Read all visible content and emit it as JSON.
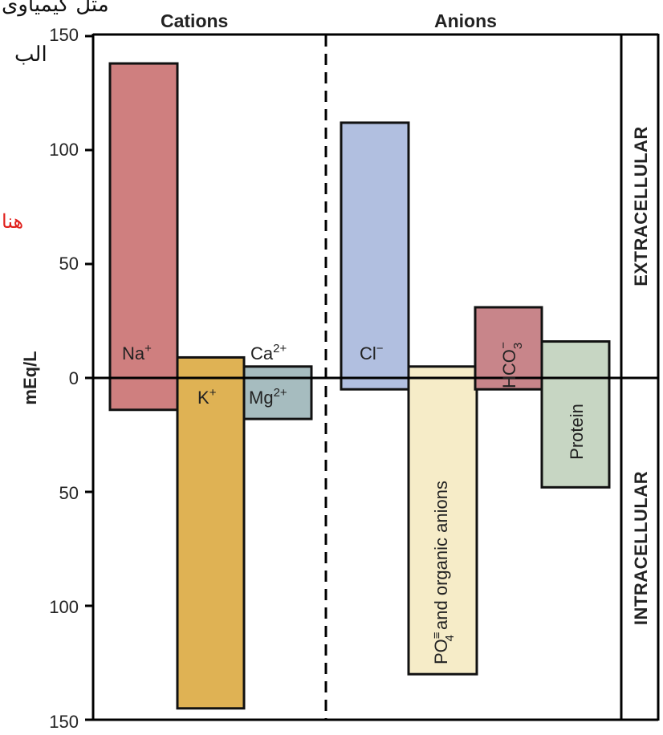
{
  "chart_data": {
    "type": "bar",
    "ylabel": "mEq/L",
    "ylim_extracellular": [
      0,
      150
    ],
    "ylim_intracellular": [
      0,
      150
    ],
    "y_ticks_top": [
      "150",
      "100",
      "50",
      "0"
    ],
    "y_ticks_bottom": [
      "50",
      "100",
      "150"
    ],
    "group_headers": {
      "cations": "Cations",
      "anions": "Anions"
    },
    "side_labels": {
      "top": "EXTRACELLULAR",
      "bottom": "INTRACELLULAR"
    },
    "bars": [
      {
        "label": "Na+",
        "extracellular": 138,
        "intracellular": 14,
        "color": "#cf7f7f"
      },
      {
        "label": "K+",
        "extracellular": 9,
        "intracellular": 145,
        "color": "#dfb254"
      },
      {
        "label": "Ca2+ / Mg2+",
        "extracellular": 5,
        "intracellular": 18,
        "color": "#a6bcbf"
      },
      {
        "label": "Cl-",
        "extracellular": 112,
        "intracellular": 5,
        "color": "#b1bfe0"
      },
      {
        "label": "PO4 and organic anions",
        "extracellular": 5,
        "intracellular": 130,
        "color": "#f6ecc8"
      },
      {
        "label": "HCO3-",
        "extracellular": 31,
        "intracellular": 5,
        "color": "#c8858a"
      },
      {
        "label": "Protein",
        "extracellular": 16,
        "intracellular": 48,
        "color": "#c7d6c3"
      }
    ],
    "bar_labels": {
      "na": "Na",
      "na_sup": "+",
      "k": "K",
      "k_sup": "+",
      "ca": "Ca",
      "ca_sup": "2+",
      "mg": "Mg",
      "mg_sup": "2+",
      "cl": "Cl",
      "cl_sup": "−",
      "po4_main": "PO",
      "po4_sup": "≡",
      "po4_sub": "4",
      "po4_rest": " and organic anions",
      "hco3_main": "HCO",
      "hco3_sub": "3",
      "hco3_sup": "−",
      "protein": "Protein"
    }
  },
  "annotations": {
    "handwritten_line1": "مثل کیمیاوی",
    "handwritten_line2": "الب",
    "handwritten_red": "هنا"
  }
}
